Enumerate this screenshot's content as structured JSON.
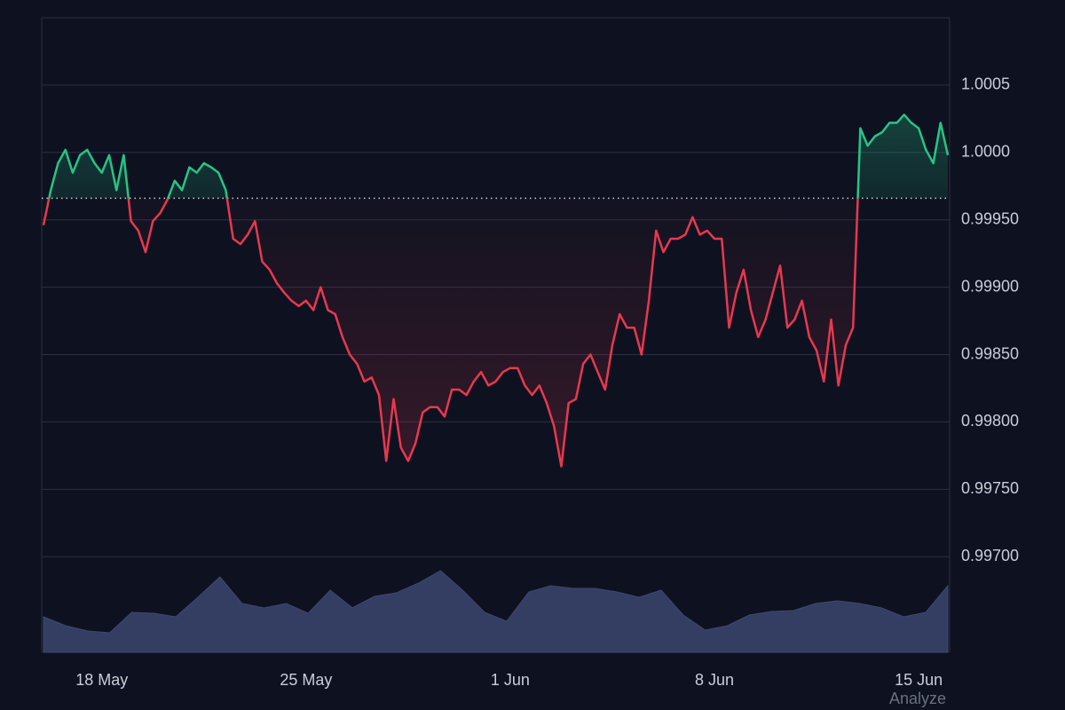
{
  "chart_data": {
    "type": "baseline",
    "categories": [
      null,
      null,
      null,
      null,
      null,
      null,
      null,
      null,
      "18 May",
      null,
      null,
      null,
      null,
      null,
      null,
      null,
      null,
      null,
      null,
      null,
      null,
      null,
      null,
      null,
      null,
      null,
      null,
      null,
      null,
      null,
      null,
      null,
      null,
      null,
      null,
      null,
      "25 May",
      null,
      null,
      null,
      null,
      null,
      null,
      null,
      null,
      null,
      null,
      null,
      null,
      null,
      null,
      null,
      null,
      null,
      null,
      null,
      null,
      null,
      null,
      null,
      null,
      null,
      null,
      null,
      "1 Jun",
      null,
      null,
      null,
      null,
      null,
      null,
      null,
      null,
      null,
      null,
      null,
      null,
      null,
      null,
      null,
      null,
      null,
      null,
      null,
      null,
      null,
      null,
      null,
      null,
      null,
      null,
      null,
      "8 Jun",
      null,
      null,
      null,
      null,
      null,
      null,
      null,
      null,
      null,
      null,
      null,
      null,
      null,
      null,
      null,
      null,
      null,
      null,
      null,
      null,
      null,
      null,
      null,
      null,
      null,
      null,
      null,
      "15 Jun",
      null,
      null,
      null,
      null
    ],
    "values": [
      0.99946,
      0.99972,
      0.99992,
      1.00002,
      0.99985,
      0.99998,
      1.00002,
      0.99992,
      0.99985,
      0.99998,
      0.99972,
      0.99998,
      0.99949,
      0.99942,
      0.99926,
      0.99949,
      0.99955,
      0.99965,
      0.99979,
      0.99972,
      0.99989,
      0.99985,
      0.99992,
      0.99989,
      0.99985,
      0.99972,
      0.99936,
      0.99932,
      0.99939,
      0.99949,
      0.99919,
      0.99913,
      0.99903,
      0.99896,
      0.9989,
      0.99886,
      0.9989,
      0.99883,
      0.999,
      0.99883,
      0.9988,
      0.99863,
      0.9985,
      0.99843,
      0.9983,
      0.99833,
      0.9982,
      0.99771,
      0.99817,
      0.99781,
      0.99771,
      0.99784,
      0.99807,
      0.99811,
      0.99811,
      0.99804,
      0.99824,
      0.99824,
      0.9982,
      0.9983,
      0.99837,
      0.99827,
      0.9983,
      0.99837,
      0.9984,
      0.9984,
      0.99827,
      0.9982,
      0.99827,
      0.99814,
      0.99797,
      0.99767,
      0.99814,
      0.99817,
      0.99843,
      0.9985,
      0.99837,
      0.99824,
      0.99857,
      0.9988,
      0.9987,
      0.9987,
      0.9985,
      0.9989,
      0.99942,
      0.99926,
      0.99936,
      0.99936,
      0.99939,
      0.99952,
      0.99939,
      0.99942,
      0.99936,
      0.99936,
      0.9987,
      0.99896,
      0.99913,
      0.99883,
      0.99863,
      0.99876,
      0.99896,
      0.99916,
      0.9987,
      0.99876,
      0.9989,
      0.99863,
      0.99853,
      0.9983,
      0.99876,
      0.99827,
      0.99857,
      0.9987,
      1.00018,
      1.00005,
      1.00012,
      1.00015,
      1.00022,
      1.00022,
      1.00028,
      1.00022,
      1.00018,
      1.00002,
      0.99992,
      1.00022,
      0.99998
    ],
    "baseline": 0.99966,
    "color_above": "#26c487",
    "color_below": "#e8384f",
    "ylim": [
      0.99629,
      1.001
    ],
    "yticks": [
      {
        "value": 0.997,
        "label": "0.99700"
      },
      {
        "value": 0.9975,
        "label": "0.99750"
      },
      {
        "value": 0.998,
        "label": "0.99800"
      },
      {
        "value": 0.9985,
        "label": "0.99850"
      },
      {
        "value": 0.999,
        "label": "0.99900"
      },
      {
        "value": 0.9995,
        "label": "0.99950"
      },
      {
        "value": 1.0,
        "label": "1.0000"
      },
      1.0005
    ],
    "grid": true,
    "volume": {
      "color": "#343d62",
      "values": [
        40,
        30,
        24,
        22,
        45,
        44,
        40,
        62,
        85,
        55,
        50,
        55,
        44,
        70,
        50,
        63,
        67,
        78,
        92,
        70,
        45,
        35,
        68,
        75,
        72,
        72,
        68,
        62,
        70,
        42,
        25,
        30,
        42,
        46,
        47,
        55,
        58,
        55,
        50,
        40,
        45,
        75
      ],
      "ylim": [
        0,
        100
      ]
    },
    "watermark": "Analyze"
  }
}
